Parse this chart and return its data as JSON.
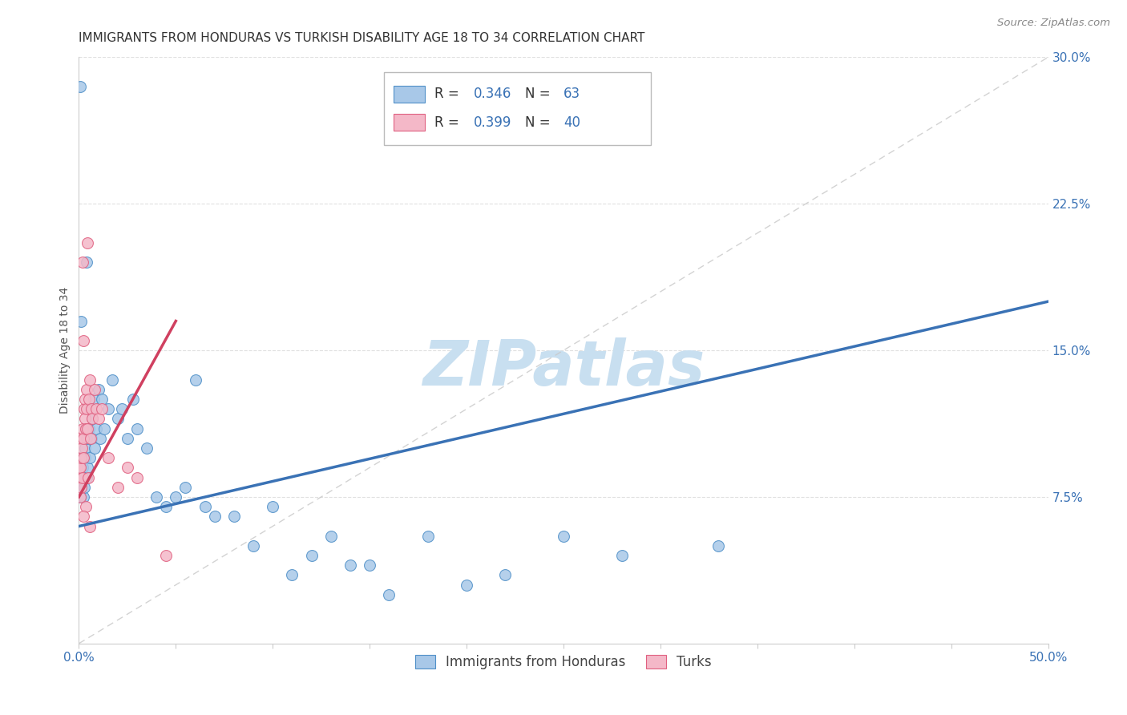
{
  "title": "IMMIGRANTS FROM HONDURAS VS TURKISH DISABILITY AGE 18 TO 34 CORRELATION CHART",
  "source": "Source: ZipAtlas.com",
  "ylabel": "Disability Age 18 to 34",
  "x_tick_labels_outer": [
    "0.0%",
    "50.0%"
  ],
  "x_tick_vals_outer": [
    0.0,
    50.0
  ],
  "x_minor_ticks": [
    5.0,
    10.0,
    15.0,
    20.0,
    25.0,
    30.0,
    35.0,
    40.0,
    45.0
  ],
  "y_tick_labels_right": [
    "7.5%",
    "15.0%",
    "22.5%",
    "30.0%"
  ],
  "y_tick_vals_right": [
    7.5,
    15.0,
    22.5,
    30.0
  ],
  "xlim": [
    0.0,
    50.0
  ],
  "ylim": [
    0.0,
    30.0
  ],
  "blue_R": 0.346,
  "blue_N": 63,
  "pink_R": 0.399,
  "pink_N": 40,
  "blue_color": "#a8c8e8",
  "pink_color": "#f4b8c8",
  "blue_edge_color": "#5090c8",
  "pink_edge_color": "#e06080",
  "blue_line_color": "#3a72b5",
  "pink_line_color": "#d04060",
  "blue_legend_label": "Immigrants from Honduras",
  "pink_legend_label": "Turks",
  "watermark": "ZIPatlas",
  "watermark_color": "#c8dff0",
  "blue_scatter_x": [
    0.05,
    0.05,
    0.05,
    0.08,
    0.1,
    0.12,
    0.15,
    0.18,
    0.2,
    0.22,
    0.25,
    0.28,
    0.3,
    0.32,
    0.35,
    0.38,
    0.4,
    0.45,
    0.5,
    0.55,
    0.6,
    0.65,
    0.7,
    0.75,
    0.8,
    0.9,
    1.0,
    1.1,
    1.2,
    1.3,
    1.5,
    1.7,
    2.0,
    2.2,
    2.5,
    2.8,
    3.0,
    3.5,
    4.0,
    4.5,
    5.0,
    5.5,
    6.0,
    6.5,
    7.0,
    8.0,
    9.0,
    10.0,
    11.0,
    12.0,
    13.0,
    14.0,
    15.0,
    16.0,
    18.0,
    20.0,
    22.0,
    25.0,
    28.0,
    33.0,
    0.06,
    0.09,
    0.4
  ],
  "blue_scatter_y": [
    9.0,
    7.5,
    8.5,
    9.5,
    8.0,
    7.5,
    8.5,
    9.0,
    8.5,
    7.5,
    9.5,
    8.0,
    10.0,
    9.5,
    11.0,
    8.5,
    10.5,
    9.0,
    11.0,
    9.5,
    12.0,
    10.5,
    11.5,
    12.5,
    10.0,
    11.0,
    13.0,
    10.5,
    12.5,
    11.0,
    12.0,
    13.5,
    11.5,
    12.0,
    10.5,
    12.5,
    11.0,
    10.0,
    7.5,
    7.0,
    7.5,
    8.0,
    13.5,
    7.0,
    6.5,
    6.5,
    5.0,
    7.0,
    3.5,
    4.5,
    5.5,
    4.0,
    4.0,
    2.5,
    5.5,
    3.0,
    3.5,
    5.5,
    4.5,
    5.0,
    28.5,
    16.5,
    19.5
  ],
  "pink_scatter_x": [
    0.03,
    0.05,
    0.05,
    0.07,
    0.08,
    0.1,
    0.12,
    0.15,
    0.17,
    0.2,
    0.22,
    0.25,
    0.28,
    0.3,
    0.32,
    0.35,
    0.38,
    0.4,
    0.45,
    0.5,
    0.55,
    0.6,
    0.65,
    0.7,
    0.8,
    0.9,
    1.0,
    1.2,
    1.5,
    2.0,
    2.5,
    3.0,
    0.18,
    0.42,
    0.48,
    0.22,
    4.5,
    0.35,
    0.55,
    0.25
  ],
  "pink_scatter_y": [
    9.0,
    8.5,
    7.5,
    10.5,
    9.0,
    8.0,
    9.5,
    10.0,
    11.0,
    8.5,
    10.5,
    9.5,
    12.0,
    11.5,
    12.5,
    11.0,
    12.0,
    13.0,
    11.0,
    12.5,
    13.5,
    10.5,
    12.0,
    11.5,
    13.0,
    12.0,
    11.5,
    12.0,
    9.5,
    8.0,
    9.0,
    8.5,
    19.5,
    20.5,
    8.5,
    15.5,
    4.5,
    7.0,
    6.0,
    6.5
  ],
  "blue_line_x0": 0.0,
  "blue_line_x1": 50.0,
  "blue_line_y0": 6.0,
  "blue_line_y1": 17.5,
  "pink_line_x0": 0.0,
  "pink_line_x1": 5.0,
  "pink_line_y0": 7.5,
  "pink_line_y1": 16.5,
  "diag_line_color": "#c8c8c8",
  "grid_color": "#e0e0e0",
  "title_fontsize": 11,
  "axis_label_fontsize": 10,
  "tick_fontsize": 11,
  "legend_fontsize": 12,
  "source_fontsize": 9.5
}
